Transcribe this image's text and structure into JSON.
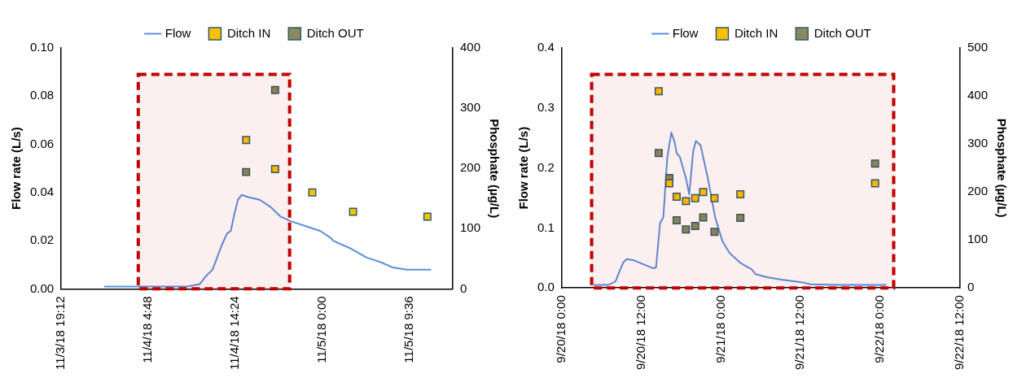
{
  "chart_data": [
    {
      "type": "line",
      "ylabel": "Flow rate (L/s)",
      "y2label": "Phosphate (µg/L)",
      "xlim": [
        "--11-03T19:12",
        "--11-05T14:24"
      ],
      "xticks": [
        {
          "value": "--11-03T19:12",
          "label": "11/3/18 19:12"
        },
        {
          "value": "--11-04T04:48",
          "label": "11/4/18 4:48"
        },
        {
          "value": "--11-04T14:24",
          "label": "11/4/18 14:24"
        },
        {
          "value": "--11-05T00:00",
          "label": "11/5/18 0:00"
        },
        {
          "value": "--11-05T09:36",
          "label": "11/5/18 9:36"
        }
      ],
      "ylim": [
        0,
        0.1
      ],
      "yticks": [
        {
          "value": 0,
          "label": "0.00"
        },
        {
          "value": 0.02,
          "label": "0.02"
        },
        {
          "value": 0.04,
          "label": "0.04"
        },
        {
          "value": 0.06,
          "label": "0.06"
        },
        {
          "value": 0.08,
          "label": "0.08"
        },
        {
          "value": 0.1,
          "label": "0.10"
        }
      ],
      "y2lim": [
        0,
        400
      ],
      "y2ticks": [
        0,
        100,
        200,
        300,
        400
      ],
      "legend": "top",
      "grid": false,
      "bands": [
        {
          "axis": "x",
          "from": "--11-04T03:42",
          "to": "--11-04T20:24",
          "color": "#c00000"
        }
      ],
      "series": [
        {
          "name": "Flow",
          "type": "line",
          "color": "#5b8fd9",
          "marker": "none",
          "x": [
            "--11-03T23:57",
            "--11-04T03:36",
            "--11-04T09:06",
            "--11-04T10:30",
            "--11-04T11:06",
            "--11-04T11:54",
            "--11-04T12:30",
            "--11-04T12:54",
            "--11-04T13:30",
            "--11-04T13:54",
            "--11-04T14:18",
            "--11-04T14:42",
            "--11-04T15:06",
            "--11-04T15:54",
            "--11-04T17:06",
            "--11-04T18:18",
            "--11-04T19:24",
            "--11-04T20:36",
            "--11-04T22:12",
            "--11-04T23:48",
            "--11-05T01:00",
            "--11-05T01:12",
            "--11-05T03:00",
            "--11-05T04:54",
            "--11-05T06:30",
            "--11-05T07:42",
            "--11-05T09:18",
            "--11-05T12:00"
          ],
          "values": [
            0.001,
            0.001,
            0.001,
            0.002,
            0.005,
            0.008,
            0.014,
            0.018,
            0.023,
            0.024,
            0.031,
            0.037,
            0.039,
            0.038,
            0.037,
            0.034,
            0.03,
            0.028,
            0.026,
            0.024,
            0.021,
            0.02,
            0.017,
            0.013,
            0.011,
            0.009,
            0.008,
            0.008
          ]
        },
        {
          "name": "Ditch IN",
          "type": "scatter",
          "axis": "y2",
          "color": "#ffc000",
          "marker": "square",
          "x": [
            "--11-04T15:36",
            "--11-04T18:48",
            "--11-04T22:54",
            "--11-05T03:24",
            "--11-05T11:36"
          ],
          "values": [
            247,
            199,
            160,
            128,
            120
          ]
        },
        {
          "name": "Ditch OUT",
          "type": "scatter",
          "axis": "y2",
          "color": "#8c8a5c",
          "marker": "square",
          "x": [
            "--11-04T15:36",
            "--11-04T18:48"
          ],
          "values": [
            194,
            330
          ]
        }
      ]
    },
    {
      "type": "line",
      "ylabel": "Flow rate (L/s)",
      "y2label": "Phosphate (µg/L)",
      "xlim": [
        "--09-20T00:00",
        "--09-22T12:00"
      ],
      "xticks": [
        {
          "value": "--09-20T00:00",
          "label": "9/20/18 0:00"
        },
        {
          "value": "--09-20T12:00",
          "label": "9/20/18 12:00"
        },
        {
          "value": "--09-21T00:00",
          "label": "9/21/18 0:00"
        },
        {
          "value": "--09-21T12:00",
          "label": "9/21/18 12:00"
        },
        {
          "value": "--09-22T00:00",
          "label": "9/22/18 0:00"
        },
        {
          "value": "--09-22T12:00",
          "label": "9/22/18 12:00"
        }
      ],
      "ylim": [
        0,
        0.4
      ],
      "yticks": [
        {
          "value": 0,
          "label": "0.0"
        },
        0.1,
        0.2,
        0.3,
        0.4
      ],
      "y2lim": [
        0,
        500
      ],
      "y2ticks": [
        0,
        100,
        200,
        300,
        400,
        500
      ],
      "legend": "top",
      "grid": false,
      "bands": [
        {
          "axis": "x",
          "from": "--09-20T04:30",
          "to": "--09-22T02:00",
          "color": "#c00000"
        }
      ],
      "series": [
        {
          "name": "Flow",
          "type": "line",
          "color": "#5b8fd9",
          "marker": "none",
          "x": [
            "--09-20T04:48",
            "--09-20T07:00",
            "--09-20T08:06",
            "--09-20T08:42",
            "--09-20T09:18",
            "--09-20T09:48",
            "--09-20T10:54",
            "--09-20T12:36",
            "--09-20T13:42",
            "--09-20T14:12",
            "--09-20T14:48",
            "--09-20T15:18",
            "--09-20T15:54",
            "--09-20T16:30",
            "--09-20T17:00",
            "--09-20T17:18",
            "--09-20T17:48",
            "--09-20T18:42",
            "--09-20T19:12",
            "--09-20T19:48",
            "--09-20T20:12",
            "--09-20T20:54",
            "--09-20T22:00",
            "--09-20T23:06",
            "--09-21T00:12",
            "--09-21T01:18",
            "--09-21T03:00",
            "--09-21T04:36",
            "--09-21T05:12",
            "--09-21T06:54",
            "--09-21T09:06",
            "--09-21T12:24",
            "--09-21T13:30",
            "--09-21T17:54",
            "--09-22T00:54"
          ],
          "values": [
            0.005,
            0.005,
            0.011,
            0.028,
            0.043,
            0.048,
            0.046,
            0.038,
            0.033,
            0.034,
            0.108,
            0.118,
            0.218,
            0.259,
            0.243,
            0.225,
            0.218,
            0.183,
            0.156,
            0.228,
            0.245,
            0.238,
            0.183,
            0.118,
            0.078,
            0.058,
            0.041,
            0.031,
            0.023,
            0.018,
            0.014,
            0.009,
            0.006,
            0.005,
            0.005
          ]
        },
        {
          "name": "Ditch IN",
          "type": "scatter",
          "axis": "y2",
          "color": "#ffc000",
          "marker": "square",
          "x": [
            "--09-20T14:36",
            "--09-20T16:12",
            "--09-20T17:18",
            "--09-20T18:42",
            "--09-20T20:06",
            "--09-20T21:18",
            "--09-20T23:00",
            "--09-21T02:54",
            "--09-21T23:12"
          ],
          "values": [
            410,
            218,
            190,
            181,
            187,
            200,
            187,
            195,
            218
          ]
        },
        {
          "name": "Ditch OUT",
          "type": "scatter",
          "axis": "y2",
          "color": "#8c8a5c",
          "marker": "square",
          "x": [
            "--09-20T14:36",
            "--09-20T16:12",
            "--09-20T17:18",
            "--09-20T18:42",
            "--09-20T20:06",
            "--09-20T21:18",
            "--09-20T23:00",
            "--09-21T02:54",
            "--09-21T23:12"
          ],
          "values": [
            281,
            229,
            141,
            122,
            129,
            147,
            117,
            146,
            259
          ]
        }
      ]
    }
  ]
}
